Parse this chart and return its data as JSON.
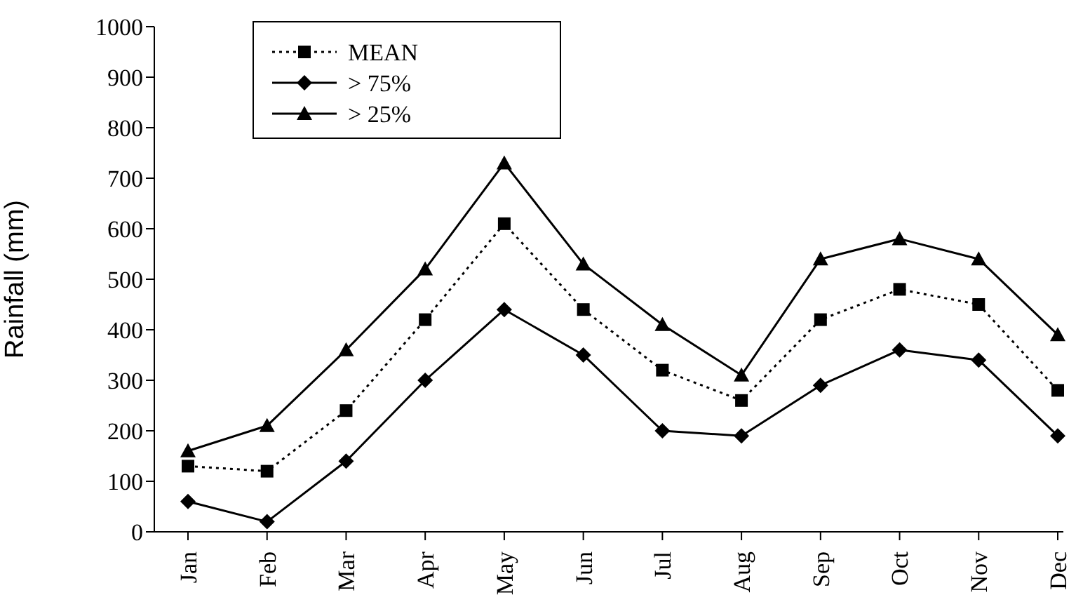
{
  "chart_data": {
    "type": "line",
    "ylabel": "Rainfall (mm)",
    "categories": [
      "Jan",
      "Feb",
      "Mar",
      "Apr",
      "May",
      "Jun",
      "Jul",
      "Aug",
      "Sep",
      "Oct",
      "Nov",
      "Dec"
    ],
    "series": [
      {
        "name": "MEAN",
        "color": "#000000",
        "marker": "square",
        "line_style": "dotted",
        "values": [
          130,
          120,
          240,
          420,
          610,
          440,
          320,
          260,
          420,
          480,
          450,
          280
        ]
      },
      {
        "name": "> 75%",
        "color": "#000000",
        "marker": "diamond",
        "line_style": "solid",
        "values": [
          60,
          20,
          140,
          300,
          440,
          350,
          200,
          190,
          290,
          360,
          340,
          190
        ]
      },
      {
        "name": "> 25%",
        "color": "#000000",
        "marker": "triangle",
        "line_style": "solid",
        "values": [
          160,
          210,
          360,
          520,
          730,
          530,
          410,
          310,
          540,
          580,
          540,
          390
        ]
      }
    ],
    "ylim": [
      0,
      1000
    ],
    "yticks": [
      0,
      100,
      200,
      300,
      400,
      500,
      600,
      700,
      800,
      900,
      1000
    ],
    "grid": false,
    "legend": "top left"
  }
}
